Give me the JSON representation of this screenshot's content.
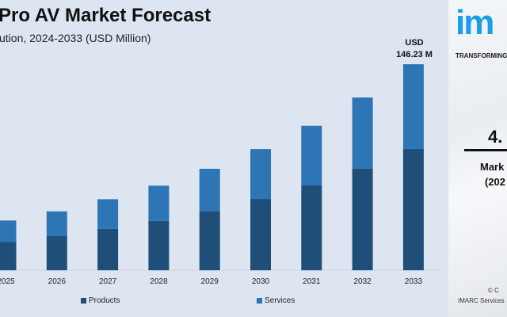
{
  "title": "Pro AV Market Forecast",
  "subtitle": "ution, 2024-2033 (USD Million)",
  "annotation": {
    "line1": "USD",
    "line2": "146.23 M"
  },
  "colors": {
    "products": "#1f4e79",
    "services": "#2e75b6",
    "background": "#dde5f1",
    "brand": "#1a9ee8"
  },
  "side_panel": {
    "logo_text": "im",
    "tagline": "TRANSFORMING",
    "cagr_value": "4.",
    "cagr_label": "Mark",
    "cagr_period": "(202",
    "copyright": "© C",
    "company": "IMARC Services"
  },
  "chart_data": {
    "type": "bar",
    "stacked": true,
    "categories": [
      "2025",
      "2026",
      "2027",
      "2028",
      "2029",
      "2030",
      "2031",
      "2032",
      "2033"
    ],
    "series": [
      {
        "name": "Products",
        "values": [
          20.2,
          24.4,
          29.4,
          35.0,
          42.0,
          50.6,
          60.2,
          72.2,
          86.1
        ]
      },
      {
        "name": "Services",
        "values": [
          15.1,
          17.4,
          21.0,
          25.0,
          30.0,
          35.4,
          42.3,
          50.4,
          60.1
        ]
      }
    ],
    "ylim": [
      0,
      146.23
    ],
    "grid": false,
    "legend": "bottom"
  }
}
